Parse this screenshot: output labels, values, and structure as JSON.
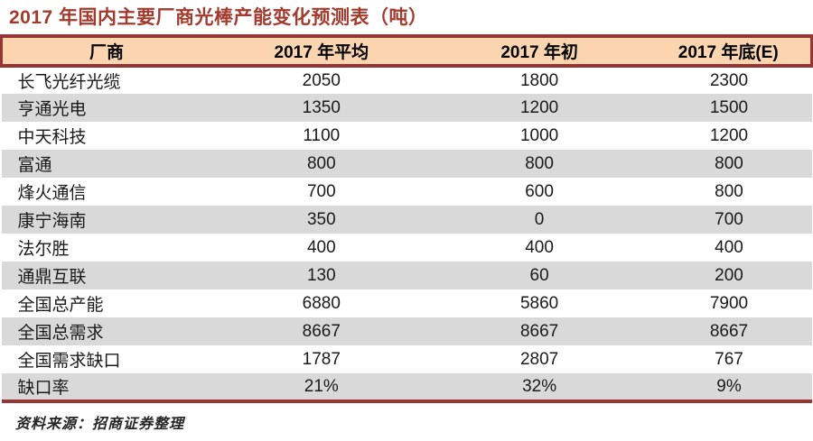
{
  "title": "2017 年国内主要厂商光棒产能变化预测表（吨）",
  "source_note": "资料来源：招商证券整理",
  "colors": {
    "accent_maroon": "#953634",
    "title_red": "#A23B2D",
    "header_bg": "#FBD5B0",
    "row_alt_bg": "#D9D9D9"
  },
  "chart_data": {
    "type": "table",
    "title": "2017 年国内主要厂商光棒产能变化预测表（吨）",
    "columns": [
      "厂商",
      "2017 年平均",
      "2017 年初",
      "2017 年底(E)"
    ],
    "rows": [
      [
        "长飞光纤光缆",
        "2050",
        "1800",
        "2300"
      ],
      [
        "亨通光电",
        "1350",
        "1200",
        "1500"
      ],
      [
        "中天科技",
        "1100",
        "1000",
        "1200"
      ],
      [
        "富通",
        "800",
        "800",
        "800"
      ],
      [
        "烽火通信",
        "700",
        "600",
        "800"
      ],
      [
        "康宁海南",
        "350",
        "0",
        "700"
      ],
      [
        "法尔胜",
        "400",
        "400",
        "400"
      ],
      [
        "通鼎互联",
        "130",
        "60",
        "200"
      ],
      [
        "全国总产能",
        "6880",
        "5860",
        "7900"
      ],
      [
        "全国总需求",
        "8667",
        "8667",
        "8667"
      ],
      [
        "全国需求缺口",
        "1787",
        "2807",
        "767"
      ],
      [
        "缺口率",
        "21%",
        "32%",
        "9%"
      ]
    ]
  }
}
